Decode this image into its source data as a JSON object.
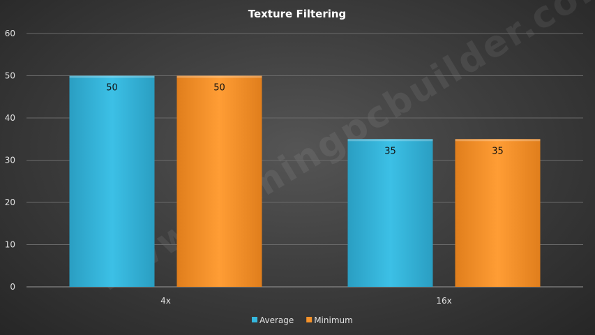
{
  "chart_data": {
    "type": "bar",
    "title": "Texture Filtering",
    "categories": [
      "4x",
      "16x"
    ],
    "series": [
      {
        "name": "Average",
        "values": [
          50,
          35
        ],
        "color": "#35b8de"
      },
      {
        "name": "Minimum",
        "values": [
          50,
          35
        ],
        "color": "#f5922a"
      }
    ],
    "ylim": [
      0,
      60
    ],
    "yticks": [
      0,
      10,
      20,
      30,
      40,
      50,
      60
    ],
    "grid": true,
    "legend_position": "bottom"
  },
  "watermark": "www.gamingpcbuilder.com"
}
